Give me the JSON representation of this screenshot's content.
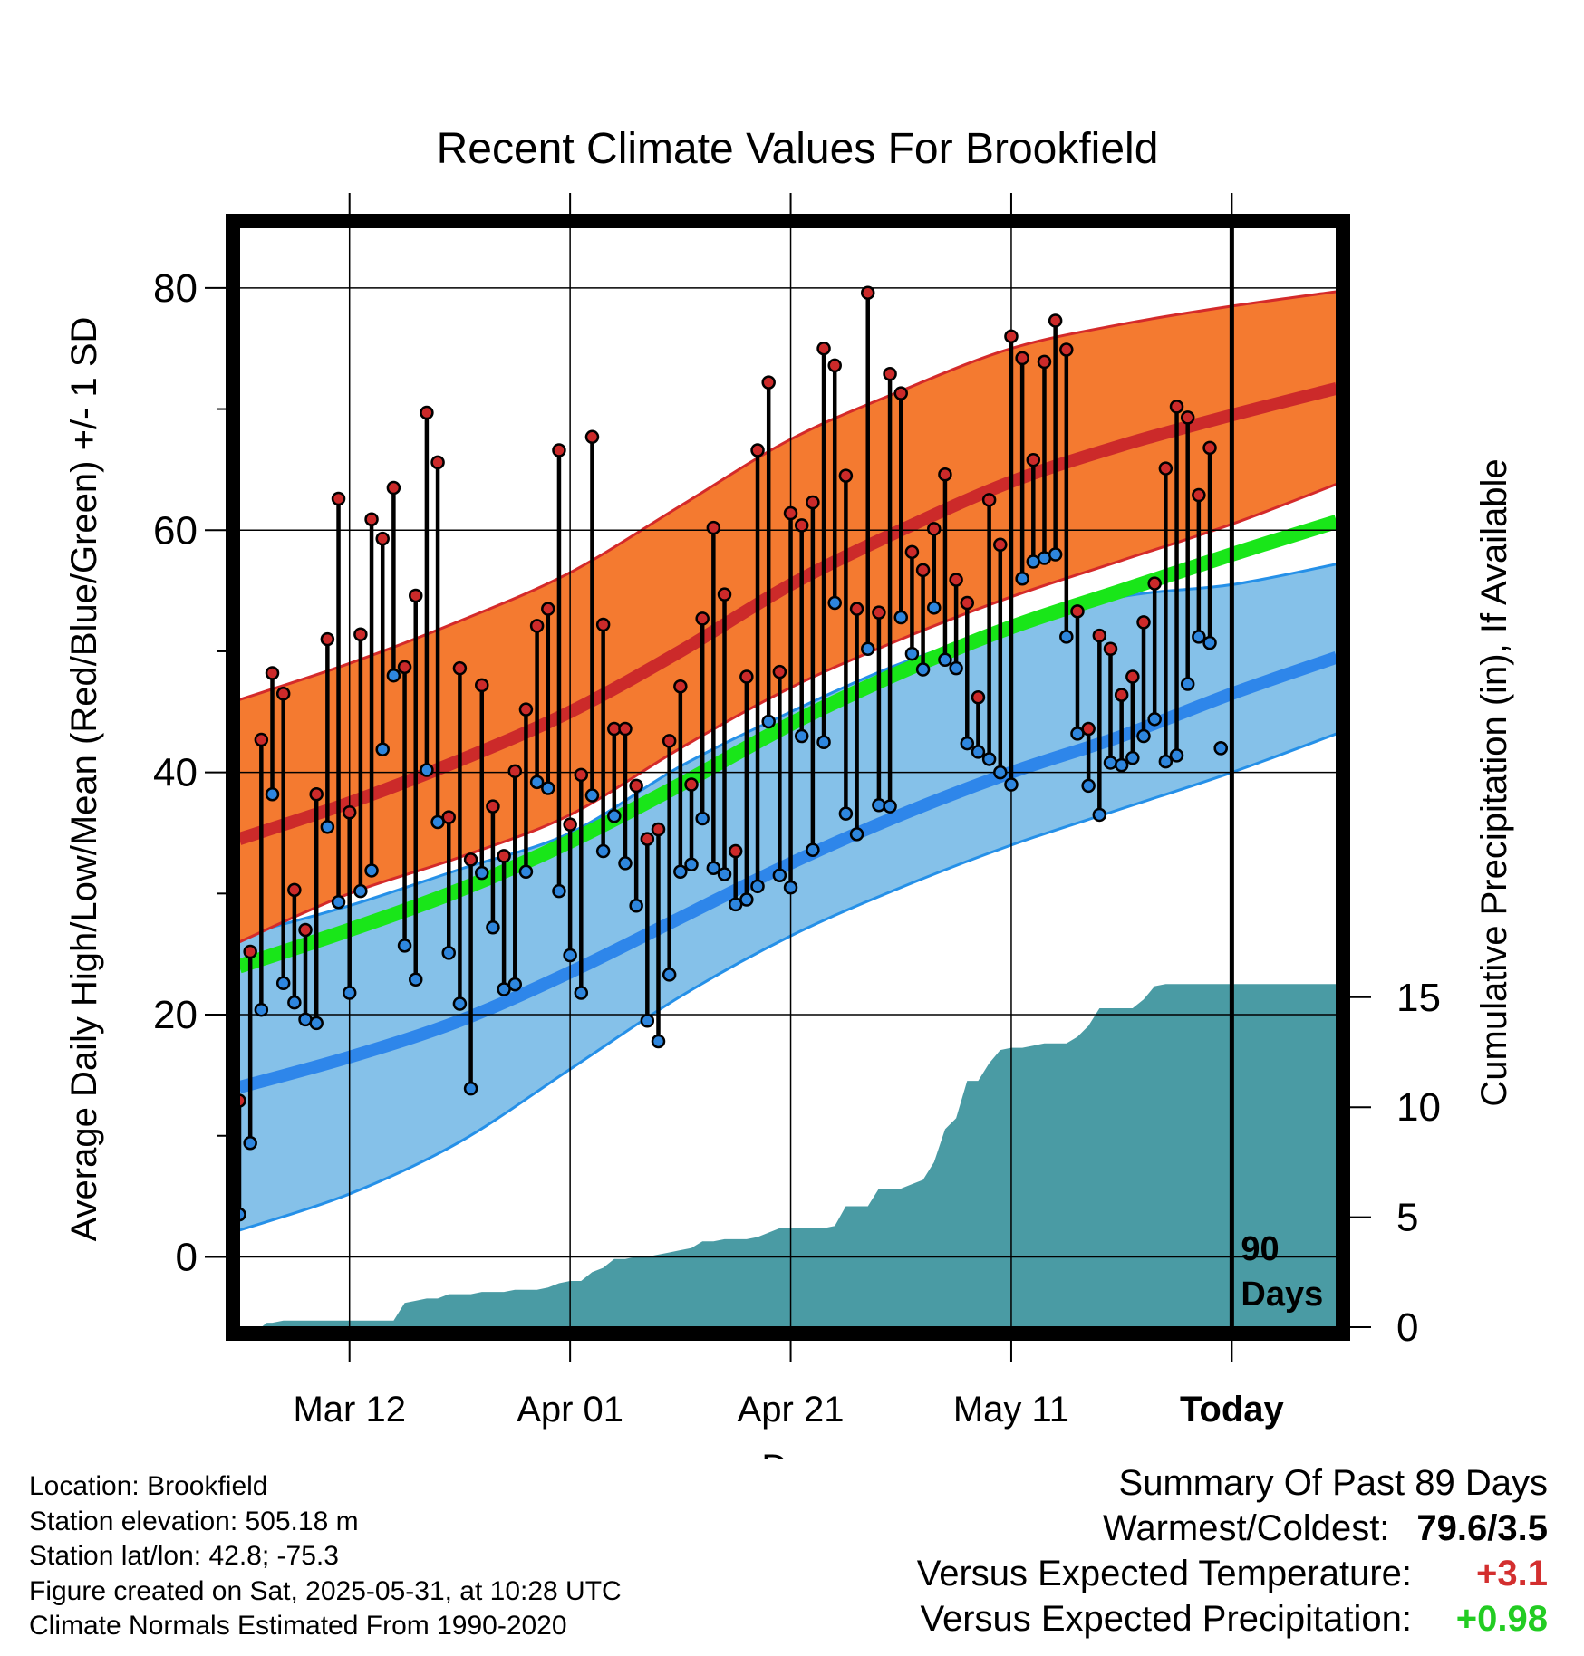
{
  "chart_data": {
    "type": "line",
    "title": "Recent Climate Values For Brookfield",
    "xlabel": "Day",
    "ylabel_left": "Average Daily High/Low/Mean (Red/Blue/Green) +/- 1 SD",
    "ylabel_right": "Cumulative Precipitation (in), If Available",
    "x_ticks": [
      {
        "day": 10,
        "label": "Mar 12"
      },
      {
        "day": 30,
        "label": "Apr 01"
      },
      {
        "day": 50,
        "label": "Apr 21"
      },
      {
        "day": 70,
        "label": "May 11"
      },
      {
        "day": 90,
        "label": "Today"
      }
    ],
    "x_range": [
      0,
      99.5
    ],
    "ylim_left": [
      -5.8,
      85
    ],
    "left_ticks": [
      0,
      20,
      40,
      60,
      80
    ],
    "ylim_right": [
      0,
      50
    ],
    "right_ticks": [
      0,
      5,
      10,
      15
    ],
    "today_day": 90,
    "today_label_lines": [
      "90",
      "Days"
    ],
    "normals_days": [
      0,
      10,
      20,
      30,
      40,
      50,
      60,
      70,
      80,
      90,
      99.5
    ],
    "normal_high": [
      34.5,
      37.5,
      41.0,
      45.0,
      50.0,
      55.5,
      60.0,
      64.0,
      67.0,
      69.5,
      71.7
    ],
    "normal_high_upper": [
      46.0,
      49.0,
      52.5,
      56.5,
      62.0,
      67.5,
      71.5,
      75.0,
      77.0,
      78.5,
      79.7
    ],
    "normal_high_lower": [
      26.0,
      30.0,
      33.0,
      36.5,
      42.0,
      47.0,
      51.0,
      54.5,
      57.5,
      60.5,
      63.8
    ],
    "normal_low": [
      14.0,
      16.5,
      19.5,
      23.5,
      28.0,
      32.5,
      36.5,
      40.0,
      43.0,
      46.5,
      49.5
    ],
    "normal_low_upper": [
      26.5,
      29.0,
      32.0,
      35.0,
      40.5,
      45.0,
      49.0,
      52.0,
      54.5,
      55.5,
      57.2
    ],
    "normal_low_lower": [
      2.2,
      5.2,
      9.5,
      15.5,
      21.5,
      26.5,
      30.5,
      34.0,
      37.0,
      40.0,
      43.2
    ],
    "normal_mean": [
      24.0,
      27.0,
      30.3,
      34.3,
      39.0,
      44.0,
      48.3,
      52.0,
      55.0,
      58.0,
      60.7
    ],
    "days": [
      0,
      1,
      2,
      3,
      4,
      5,
      6,
      7,
      8,
      9,
      10,
      11,
      12,
      13,
      14,
      15,
      16,
      17,
      18,
      19,
      20,
      21,
      22,
      23,
      24,
      25,
      26,
      27,
      28,
      29,
      30,
      31,
      32,
      33,
      34,
      35,
      36,
      37,
      38,
      39,
      40,
      41,
      42,
      43,
      44,
      45,
      46,
      47,
      48,
      49,
      50,
      51,
      52,
      53,
      54,
      55,
      56,
      57,
      58,
      59,
      60,
      61,
      62,
      63,
      64,
      65,
      66,
      67,
      68,
      69,
      70,
      71,
      72,
      73,
      74,
      75,
      76,
      77,
      78,
      79,
      80,
      81,
      82,
      83,
      84,
      85,
      86,
      87,
      88,
      89
    ],
    "high": [
      12.9,
      25.2,
      42.7,
      48.2,
      46.5,
      30.3,
      27.0,
      38.2,
      51.0,
      62.6,
      36.7,
      51.4,
      60.9,
      59.3,
      63.5,
      48.7,
      54.6,
      69.7,
      65.6,
      36.3,
      48.6,
      32.8,
      47.2,
      37.2,
      33.1,
      40.1,
      45.2,
      52.1,
      53.5,
      66.6,
      35.7,
      39.8,
      67.7,
      52.2,
      43.6,
      43.6,
      38.9,
      34.5,
      35.3,
      42.6,
      47.1,
      39.0,
      52.7,
      60.2,
      54.7,
      33.5,
      47.9,
      66.6,
      72.2,
      48.3,
      61.4,
      60.4,
      62.3,
      75.0,
      73.6,
      64.5,
      53.5,
      79.6,
      53.2,
      72.9,
      71.3,
      58.2,
      56.7,
      60.1,
      64.6,
      55.9,
      54.0,
      46.2,
      62.5,
      58.8,
      76.0,
      74.2,
      65.8,
      73.9,
      77.3,
      74.9,
      53.3,
      43.6,
      51.3,
      50.2,
      46.4,
      47.9,
      52.4,
      55.6,
      65.1,
      70.2,
      69.3,
      62.9,
      66.8,
      42.0
    ],
    "low": [
      3.5,
      9.4,
      20.4,
      38.2,
      22.6,
      21.0,
      19.6,
      19.3,
      35.5,
      29.3,
      21.8,
      30.2,
      31.9,
      41.9,
      48.0,
      25.7,
      22.9,
      40.2,
      35.9,
      25.1,
      20.9,
      13.9,
      31.7,
      27.2,
      22.1,
      22.5,
      31.8,
      39.2,
      38.7,
      30.2,
      24.9,
      21.8,
      38.1,
      33.5,
      36.4,
      32.5,
      29.0,
      19.5,
      17.8,
      23.3,
      31.8,
      32.4,
      36.2,
      32.1,
      31.6,
      29.1,
      29.5,
      30.6,
      44.2,
      31.5,
      30.5,
      43.0,
      33.6,
      42.5,
      54.0,
      36.6,
      34.9,
      50.2,
      37.3,
      37.2,
      52.8,
      49.8,
      48.5,
      53.6,
      49.3,
      48.6,
      42.4,
      41.7,
      41.1,
      40.0,
      39.0,
      56.0,
      57.4,
      57.7,
      58.0,
      51.2,
      43.2,
      38.9,
      36.5,
      40.8,
      40.6,
      41.2,
      43.0,
      44.4,
      40.9,
      41.4,
      47.3,
      51.2,
      50.7,
      42.0
    ],
    "precip_days": [
      0,
      2,
      2.5,
      3,
      4,
      5,
      7,
      8,
      9,
      10,
      11,
      12,
      13,
      14,
      15,
      16,
      17,
      18,
      19,
      20,
      21,
      22,
      23,
      24,
      25,
      26,
      27,
      28,
      29,
      30,
      31,
      32,
      33,
      34,
      35,
      36,
      37,
      38,
      39,
      40,
      41,
      42,
      43,
      44,
      45,
      46,
      47,
      48,
      49,
      50,
      51,
      52,
      53,
      54,
      55,
      56,
      57,
      58,
      59,
      60,
      61,
      62,
      63,
      64,
      65,
      66,
      67,
      68,
      69,
      70,
      71,
      72,
      73,
      74,
      75,
      76,
      77,
      78,
      79,
      80,
      81,
      82,
      83,
      84,
      85,
      86,
      87,
      88,
      89,
      90,
      99.5
    ],
    "precip": [
      0,
      0,
      0.2,
      0.2,
      0.3,
      0.3,
      0.3,
      0.3,
      0.3,
      0.3,
      0.3,
      0.3,
      0.3,
      0.3,
      1.1,
      1.2,
      1.3,
      1.3,
      1.5,
      1.5,
      1.5,
      1.6,
      1.6,
      1.6,
      1.7,
      1.7,
      1.7,
      1.8,
      2.0,
      2.1,
      2.1,
      2.5,
      2.7,
      3.1,
      3.1,
      3.2,
      3.2,
      3.3,
      3.4,
      3.5,
      3.6,
      3.9,
      3.9,
      4.0,
      4.0,
      4.0,
      4.1,
      4.3,
      4.5,
      4.5,
      4.5,
      4.5,
      4.5,
      4.6,
      5.5,
      5.5,
      5.5,
      6.3,
      6.3,
      6.3,
      6.5,
      6.7,
      7.5,
      9.0,
      9.5,
      11.2,
      11.2,
      12.0,
      12.6,
      12.7,
      12.7,
      12.8,
      12.9,
      12.9,
      12.9,
      13.2,
      13.7,
      14.5,
      14.5,
      14.5,
      14.5,
      14.9,
      15.5,
      15.6,
      15.6,
      15.6,
      15.6,
      15.6,
      15.6,
      15.6,
      15.6,
      15.6
    ]
  },
  "colors": {
    "high_band": "#F47A30",
    "high_band_edge": "#D42A2A",
    "high_line": "#CC2A2A",
    "low_band": "#85C1E9",
    "low_band_edge": "#2590E8",
    "low_line": "#2E86EA",
    "mean_line": "#19E619",
    "precip_fill": "#4A9BA4",
    "high_marker": "#CC2A2A",
    "low_marker": "#2E86DE",
    "positive_temp": "#D32F2F",
    "positive_precip": "#22CC22"
  },
  "footer": {
    "location": "Location: Brookfield",
    "elevation": "Station elevation: 505.18 m",
    "latlon": "Station lat/lon: 42.8; -75.3",
    "created": "Figure created on Sat, 2025-05-31, at 10:28 UTC",
    "normals": "Climate Normals Estimated From 1990-2020"
  },
  "summary": {
    "heading": "Summary Of Past 89 Days",
    "warmest_coldest_label": "Warmest/Coldest:",
    "warmest_coldest_value": "79.6/3.5",
    "temp_label": "Versus Expected Temperature:",
    "temp_value": "+3.1",
    "precip_label": "Versus Expected Precipitation:",
    "precip_value": "+0.98"
  }
}
